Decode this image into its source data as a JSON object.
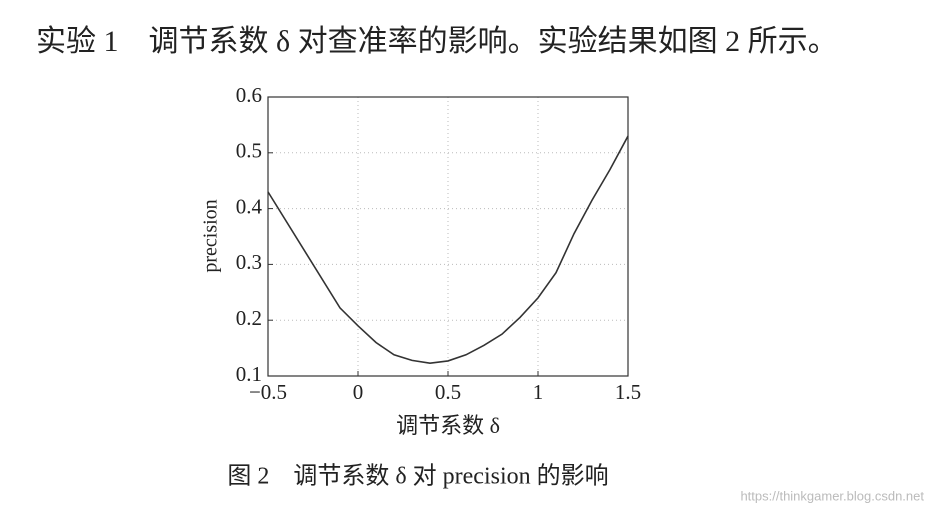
{
  "text": "实验 1　调节系数 δ 对查准率的影响。实验结果如图 2 所示。",
  "chart_data": {
    "type": "line",
    "x_label": "调节系数 δ",
    "y_label": "precision",
    "x": [
      -0.5,
      -0.1,
      0,
      0.1,
      0.2,
      0.3,
      0.4,
      0.5,
      0.6,
      0.7,
      0.8,
      0.9,
      1,
      1.1,
      1.2,
      1.3,
      1.4,
      1.5
    ],
    "values": [
      0.43,
      0.222,
      0.19,
      0.16,
      0.138,
      0.128,
      0.123,
      0.127,
      0.138,
      0.155,
      0.175,
      0.205,
      0.24,
      0.285,
      0.355,
      0.415,
      0.47,
      0.53
    ],
    "color": "#333333",
    "xlim": [
      -0.5,
      1.5
    ],
    "ylim": [
      0.1,
      0.6
    ],
    "xticks": [
      {
        "value": -0.5,
        "label": "−0.5"
      },
      0,
      0.5,
      1,
      1.5
    ],
    "yticks": [
      0.1,
      0.2,
      0.3,
      0.4,
      0.5,
      0.6
    ],
    "grid": true
  },
  "caption": "图 2　调节系数 δ 对 precision 的影响",
  "watermark": "https://thinkgamer.blog.csdn.net"
}
